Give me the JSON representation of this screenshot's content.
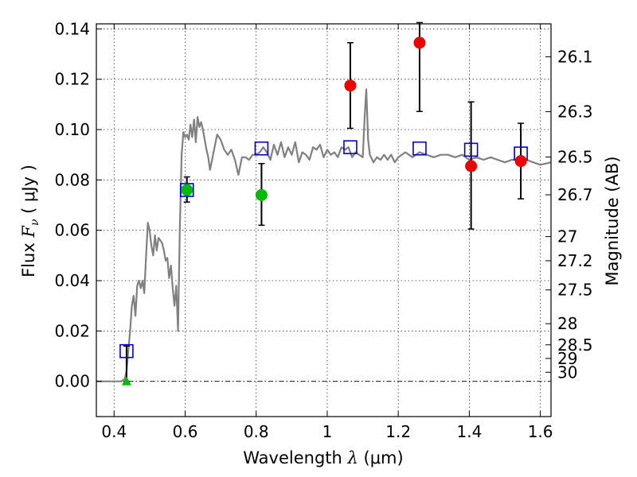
{
  "chart_data": {
    "type": "scatter",
    "xlabel": "Wavelength  λ (μm)",
    "xlabel_parts": {
      "text": "Wavelength  ",
      "math": "λ",
      "tail": " (μm)"
    },
    "ylabel_parts": {
      "text": "Flux  ",
      "math": "F",
      "sub": "ν",
      "tail": "  ( μJy )"
    },
    "y2label": "Magnitude (AB)",
    "xlim": [
      0.35,
      1.63
    ],
    "ylim": [
      -0.014,
      0.142
    ],
    "xticks": [
      0.4,
      0.6,
      0.8,
      1.0,
      1.2,
      1.4,
      1.6
    ],
    "xtick_labels": [
      "0.4",
      "0.6",
      "0.8",
      "1",
      "1.2",
      "1.4",
      "1.6"
    ],
    "yticks": [
      0.0,
      0.02,
      0.04,
      0.06,
      0.08,
      0.1,
      0.12,
      0.14
    ],
    "ytick_labels": [
      "0.00",
      "0.02",
      "0.04",
      "0.06",
      "0.08",
      "0.10",
      "0.12",
      "0.14"
    ],
    "y2ticks": [
      {
        "flux": 0.1289,
        "label": "26.1"
      },
      {
        "flux": 0.1071,
        "label": "26.3"
      },
      {
        "flux": 0.0891,
        "label": "26.5"
      },
      {
        "flux": 0.0741,
        "label": "26.7"
      },
      {
        "flux": 0.0575,
        "label": "27"
      },
      {
        "flux": 0.0479,
        "label": "27.2"
      },
      {
        "flux": 0.0363,
        "label": "27.5"
      },
      {
        "flux": 0.0229,
        "label": "28"
      },
      {
        "flux": 0.0145,
        "label": "28.5"
      },
      {
        "flux": 0.0091,
        "label": "29"
      },
      {
        "flux": 0.0036,
        "label": "30"
      }
    ],
    "grid": true,
    "colors": {
      "model": "#808080",
      "model_phot": "#0000cc",
      "obs_green": "#00bb00",
      "obs_red": "#ee0000",
      "errorbar": "#000000"
    },
    "series": [
      {
        "style": "line",
        "color": "#808080",
        "x": [
          0.35,
          0.42,
          0.43,
          0.435,
          0.44,
          0.445,
          0.45,
          0.455,
          0.46,
          0.465,
          0.47,
          0.475,
          0.48,
          0.485,
          0.49,
          0.495,
          0.5,
          0.505,
          0.51,
          0.515,
          0.52,
          0.525,
          0.53,
          0.535,
          0.54,
          0.545,
          0.55,
          0.555,
          0.56,
          0.565,
          0.57,
          0.575,
          0.58,
          0.585,
          0.59,
          0.595,
          0.6,
          0.605,
          0.61,
          0.615,
          0.62,
          0.625,
          0.63,
          0.635,
          0.64,
          0.645,
          0.65,
          0.655,
          0.66,
          0.665,
          0.67,
          0.68,
          0.69,
          0.7,
          0.71,
          0.72,
          0.73,
          0.74,
          0.75,
          0.76,
          0.77,
          0.78,
          0.79,
          0.8,
          0.81,
          0.82,
          0.83,
          0.84,
          0.85,
          0.86,
          0.87,
          0.88,
          0.89,
          0.9,
          0.91,
          0.92,
          0.93,
          0.94,
          0.95,
          0.96,
          0.97,
          0.98,
          0.99,
          1.0,
          1.01,
          1.02,
          1.03,
          1.04,
          1.05,
          1.06,
          1.07,
          1.08,
          1.09,
          1.1,
          1.105,
          1.11,
          1.115,
          1.12,
          1.13,
          1.14,
          1.15,
          1.16,
          1.17,
          1.18,
          1.19,
          1.2,
          1.22,
          1.24,
          1.26,
          1.28,
          1.3,
          1.32,
          1.34,
          1.36,
          1.38,
          1.4,
          1.42,
          1.44,
          1.46,
          1.48,
          1.5,
          1.52,
          1.54,
          1.56,
          1.58,
          1.6,
          1.63
        ],
        "y": [
          0.0,
          0.0,
          0.001,
          0.004,
          0.012,
          0.02,
          0.03,
          0.034,
          0.026,
          0.038,
          0.04,
          0.037,
          0.04,
          0.035,
          0.05,
          0.063,
          0.06,
          0.054,
          0.05,
          0.058,
          0.052,
          0.057,
          0.056,
          0.055,
          0.052,
          0.048,
          0.049,
          0.041,
          0.046,
          0.037,
          0.03,
          0.038,
          0.02,
          0.06,
          0.09,
          0.099,
          0.097,
          0.098,
          0.096,
          0.102,
          0.097,
          0.104,
          0.095,
          0.105,
          0.101,
          0.103,
          0.1,
          0.096,
          0.092,
          0.089,
          0.084,
          0.091,
          0.098,
          0.096,
          0.092,
          0.09,
          0.092,
          0.088,
          0.082,
          0.089,
          0.089,
          0.088,
          0.09,
          0.09,
          0.091,
          0.093,
          0.091,
          0.088,
          0.094,
          0.09,
          0.095,
          0.089,
          0.093,
          0.09,
          0.095,
          0.087,
          0.091,
          0.09,
          0.088,
          0.093,
          0.092,
          0.094,
          0.089,
          0.092,
          0.09,
          0.091,
          0.089,
          0.093,
          0.092,
          0.093,
          0.089,
          0.091,
          0.09,
          0.089,
          0.104,
          0.116,
          0.096,
          0.09,
          0.087,
          0.089,
          0.088,
          0.09,
          0.088,
          0.09,
          0.087,
          0.089,
          0.091,
          0.089,
          0.091,
          0.09,
          0.089,
          0.09,
          0.09,
          0.089,
          0.09,
          0.088,
          0.089,
          0.088,
          0.089,
          0.088,
          0.087,
          0.088,
          0.088,
          0.088,
          0.087,
          0.086,
          0.087
        ]
      },
      {
        "style": "open-square",
        "color": "#0000cc",
        "x": [
          0.435,
          0.605,
          0.815,
          1.065,
          1.26,
          1.405,
          1.545
        ],
        "y": [
          0.012,
          0.076,
          0.0925,
          0.093,
          0.0925,
          0.092,
          0.0905
        ]
      },
      {
        "style": "filled-circle",
        "color": "#00bb00",
        "x": [
          0.605,
          0.815
        ],
        "y": [
          0.076,
          0.074
        ],
        "yerr_low": [
          0.0712,
          0.062
        ],
        "yerr_high": [
          0.0812,
          0.0865
        ]
      },
      {
        "style": "filled-circle",
        "color": "#ee0000",
        "x": [
          1.065,
          1.26,
          1.405,
          1.545
        ],
        "y": [
          0.1175,
          0.1345,
          0.0855,
          0.0875
        ],
        "yerr_low": [
          0.1005,
          0.1072,
          0.0605,
          0.0725
        ],
        "yerr_high": [
          0.1345,
          0.1425,
          0.111,
          0.1025
        ]
      },
      {
        "style": "triangle",
        "color": "#00bb00",
        "x": [
          0.435
        ],
        "y": [
          0.0
        ],
        "yerr_low": [
          0.0
        ],
        "yerr_high": [
          0.014
        ]
      }
    ]
  }
}
